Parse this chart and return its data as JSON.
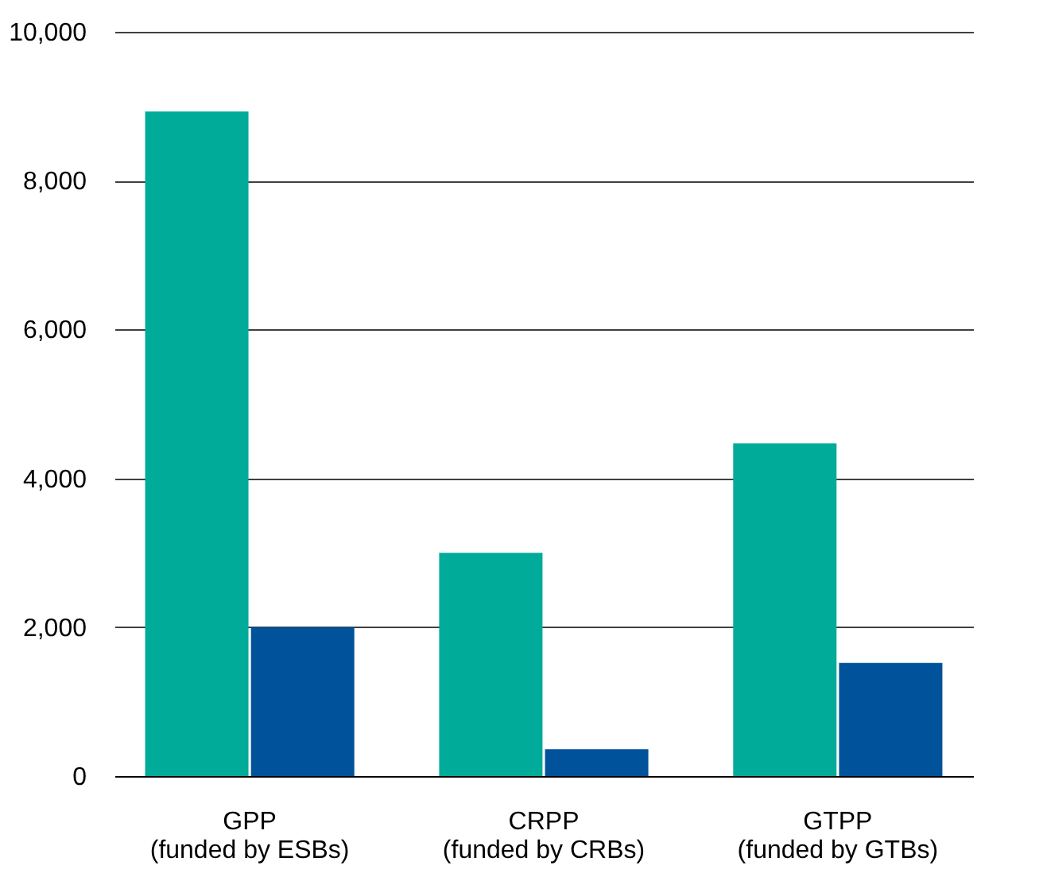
{
  "chart_data": {
    "type": "bar",
    "categories": [
      "GPP\n(funded by ESBs)",
      "CRPP\n(funded by CRBs)",
      "GTPP\n(funded by GTBs)"
    ],
    "series": [
      {
        "color": "#00ab9a",
        "values": [
          8930,
          3000,
          4470
        ]
      },
      {
        "color": "#00529b",
        "values": [
          2000,
          360,
          1520
        ]
      }
    ],
    "ylim": [
      0,
      10000
    ],
    "yticks": [
      0,
      {
        "value": 2000,
        "label": "2,000"
      },
      {
        "value": 4000,
        "label": "4,000"
      },
      {
        "value": 6000,
        "label": "6,000"
      },
      {
        "value": 8000,
        "label": "8,000"
      },
      {
        "value": 10000,
        "label": "10,000"
      }
    ],
    "grid": "y",
    "legend": false
  }
}
